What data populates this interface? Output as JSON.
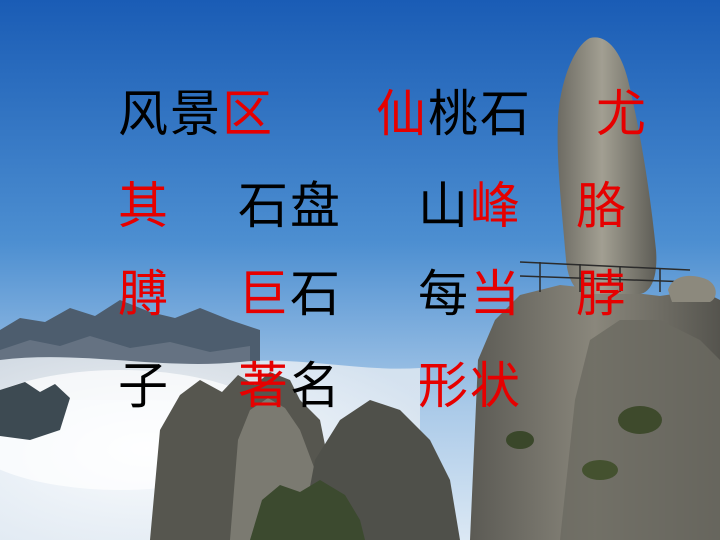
{
  "colors": {
    "sky_top": "#1f63b8",
    "sky_bottom": "#b6d2ec",
    "highlight": "#e60000",
    "normal": "#000000",
    "rock": "#6f6e67",
    "mist": "#eef3f8"
  },
  "rows": [
    [
      {
        "id": "fengjingqu",
        "chars": [
          {
            "t": "风",
            "c": "normal"
          },
          {
            "t": "景",
            "c": "normal"
          },
          {
            "t": "区",
            "c": "highlight"
          }
        ]
      },
      {
        "id": "xiantaoshi",
        "chars": [
          {
            "t": "仙",
            "c": "highlight"
          },
          {
            "t": "桃",
            "c": "normal"
          },
          {
            "t": "石",
            "c": "normal"
          }
        ]
      },
      {
        "id": "you",
        "chars": [
          {
            "t": "尤",
            "c": "highlight"
          }
        ]
      }
    ],
    [
      {
        "id": "qi",
        "chars": [
          {
            "t": "其",
            "c": "highlight"
          }
        ]
      },
      {
        "id": "shipan",
        "chars": [
          {
            "t": "石",
            "c": "normal"
          },
          {
            "t": "盘",
            "c": "normal"
          }
        ]
      },
      {
        "id": "shanfeng",
        "chars": [
          {
            "t": "山",
            "c": "normal"
          },
          {
            "t": "峰",
            "c": "highlight"
          }
        ]
      },
      {
        "id": "ge",
        "chars": [
          {
            "t": "胳",
            "c": "highlight"
          }
        ]
      }
    ],
    [
      {
        "id": "bo",
        "chars": [
          {
            "t": "膊",
            "c": "highlight"
          }
        ]
      },
      {
        "id": "jushi",
        "chars": [
          {
            "t": "巨",
            "c": "highlight"
          },
          {
            "t": "石",
            "c": "normal"
          }
        ]
      },
      {
        "id": "meidang",
        "chars": [
          {
            "t": "每",
            "c": "normal"
          },
          {
            "t": "当",
            "c": "highlight"
          }
        ]
      },
      {
        "id": "bo2",
        "chars": [
          {
            "t": "脖",
            "c": "highlight"
          }
        ]
      }
    ],
    [
      {
        "id": "zi",
        "chars": [
          {
            "t": "子",
            "c": "normal"
          }
        ]
      },
      {
        "id": "zhuming",
        "chars": [
          {
            "t": "著",
            "c": "highlight"
          },
          {
            "t": "名",
            "c": "normal"
          }
        ]
      },
      {
        "id": "xingzhuang",
        "chars": [
          {
            "t": "形",
            "c": "highlight"
          },
          {
            "t": "状",
            "c": "highlight"
          }
        ]
      }
    ]
  ]
}
